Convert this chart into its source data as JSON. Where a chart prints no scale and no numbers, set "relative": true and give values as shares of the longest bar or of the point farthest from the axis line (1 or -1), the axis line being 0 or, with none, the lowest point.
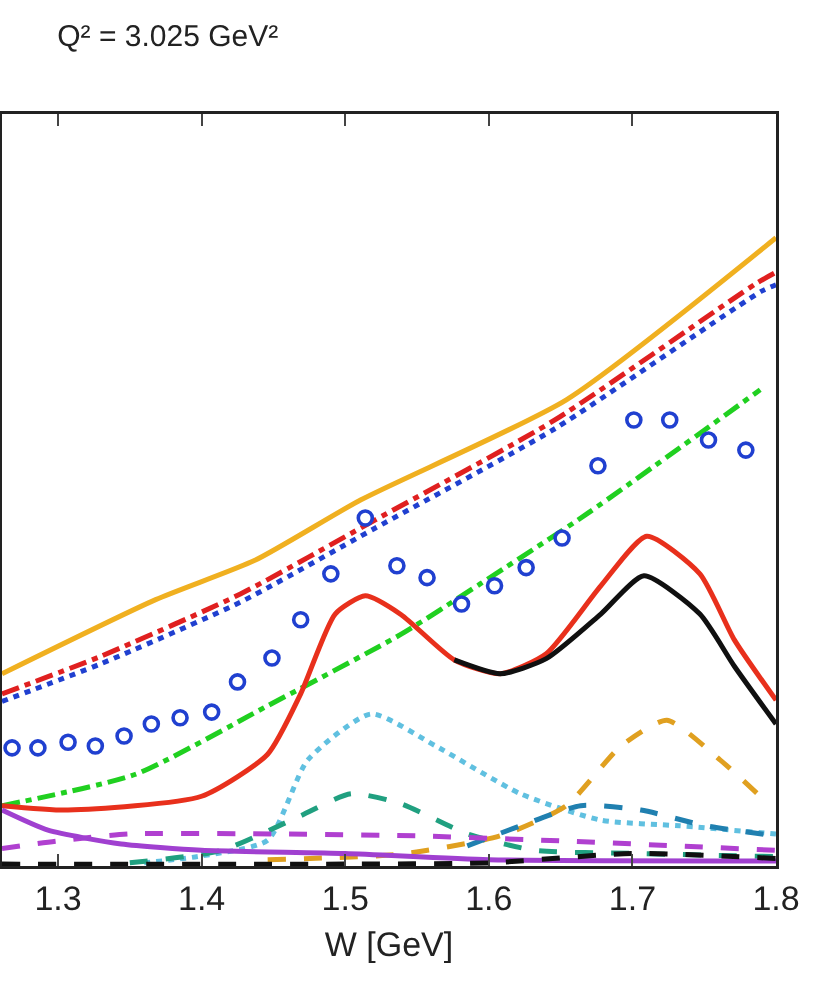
{
  "chart_data": {
    "type": "line",
    "title": "Q² = 3.025 GeV²",
    "xlabel": "W [GeV]",
    "relative": true,
    "xlim": [
      1.261,
      1.8
    ],
    "xticks": [
      1.3,
      1.4,
      1.5,
      1.6,
      1.7,
      1.8
    ],
    "grid": false,
    "series": [
      {
        "color": "#f0b020",
        "line_style": "solid",
        "x": [
          1.261,
          1.368,
          1.4375,
          1.511,
          1.654,
          1.8
        ],
        "values": [
          0.306,
          0.424,
          0.487,
          0.583,
          0.742,
          1.0
        ]
      },
      {
        "color": "#e02020",
        "line_style": "dashdot",
        "x": [
          1.261,
          1.33,
          1.427,
          1.521,
          1.646,
          1.786,
          1.8
        ],
        "values": [
          0.274,
          0.334,
          0.433,
          0.551,
          0.71,
          0.927,
          0.945
        ]
      },
      {
        "color": "#2040d0",
        "line_style": "dotted",
        "x": [
          1.261,
          1.33,
          1.427,
          1.521,
          1.646,
          1.79,
          1.8
        ],
        "values": [
          0.262,
          0.322,
          0.42,
          0.538,
          0.696,
          0.915,
          0.925
        ]
      },
      {
        "color": "#20d020",
        "line_style": "dashdot",
        "x": [
          1.261,
          1.354,
          1.446,
          1.539,
          1.594,
          1.668,
          1.789
        ],
        "values": [
          0.096,
          0.146,
          0.255,
          0.369,
          0.449,
          0.56,
          0.758
        ]
      },
      {
        "type": "scatter",
        "color": "#2040d0",
        "marker": "circle",
        "x": [
          1.268,
          1.286,
          1.307,
          1.326,
          1.346,
          1.365,
          1.385,
          1.407,
          1.425,
          1.449,
          1.469,
          1.49,
          1.514,
          1.536,
          1.557,
          1.581,
          1.604,
          1.626,
          1.651,
          1.676,
          1.701,
          1.726,
          1.753,
          1.779
        ],
        "values": [
          0.188,
          0.188,
          0.197,
          0.191,
          0.207,
          0.226,
          0.236,
          0.245,
          0.293,
          0.331,
          0.392,
          0.465,
          0.554,
          0.478,
          0.459,
          0.417,
          0.446,
          0.475,
          0.522,
          0.637,
          0.71,
          0.71,
          0.678,
          0.662
        ]
      },
      {
        "color": "#e8301c",
        "line_style": "solid",
        "x": [
          1.261,
          1.307,
          1.4,
          1.446,
          1.469,
          1.493,
          1.514,
          1.539,
          1.576,
          1.608,
          1.64,
          1.678,
          1.71,
          1.747,
          1.771,
          1.8
        ],
        "values": [
          0.096,
          0.089,
          0.111,
          0.178,
          0.274,
          0.401,
          0.43,
          0.4,
          0.328,
          0.306,
          0.338,
          0.446,
          0.525,
          0.465,
          0.36,
          0.264
        ]
      },
      {
        "color": "#101010",
        "line_style": "solid",
        "x": [
          1.576,
          1.608,
          1.64,
          1.678,
          1.708,
          1.747,
          1.771,
          1.8
        ],
        "values": [
          0.328,
          0.306,
          0.33,
          0.401,
          0.462,
          0.401,
          0.318,
          0.226
        ]
      },
      {
        "color": "#60c0e0",
        "line_style": "dotted",
        "x": [
          1.36,
          1.4,
          1.446,
          1.474,
          1.518,
          1.563,
          1.622,
          1.678,
          1.733,
          1.8
        ],
        "values": [
          0.005,
          0.016,
          0.041,
          0.169,
          0.242,
          0.191,
          0.115,
          0.073,
          0.064,
          0.051
        ]
      },
      {
        "color": "#20a080",
        "line_style": "dashed",
        "x": [
          1.35,
          1.414,
          1.469,
          1.504,
          1.539,
          1.585,
          1.632,
          1.7,
          1.8
        ],
        "values": [
          0.005,
          0.025,
          0.08,
          0.115,
          0.099,
          0.051,
          0.025,
          0.02,
          0.015
        ]
      },
      {
        "color": "#e0a020",
        "line_style": "dashed",
        "x": [
          1.446,
          1.539,
          1.608,
          1.654,
          1.692,
          1.724,
          1.761,
          1.789
        ],
        "values": [
          0.01,
          0.019,
          0.048,
          0.096,
          0.191,
          0.232,
          0.169,
          0.111
        ]
      },
      {
        "color": "#2080b0",
        "line_style": "dashed",
        "x": [
          1.585,
          1.622,
          1.664,
          1.706,
          1.751,
          1.8
        ],
        "values": [
          0.032,
          0.064,
          0.096,
          0.089,
          0.064,
          0.048
        ]
      },
      {
        "color": "#b040d0",
        "line_style": "dashed",
        "x": [
          1.261,
          1.3,
          1.35,
          1.45,
          1.55,
          1.65,
          1.8
        ],
        "values": [
          0.028,
          0.04,
          0.051,
          0.051,
          0.048,
          0.04,
          0.025
        ]
      },
      {
        "color": "#a040d0",
        "line_style": "solid",
        "x": [
          1.261,
          1.293,
          1.344,
          1.4,
          1.5,
          1.6,
          1.8
        ],
        "values": [
          0.089,
          0.057,
          0.035,
          0.025,
          0.02,
          0.01,
          0.008
        ]
      },
      {
        "color": "#101010",
        "line_style": "dashed",
        "x": [
          1.261,
          1.5,
          1.6,
          1.7,
          1.8
        ],
        "values": [
          0.003,
          0.003,
          0.005,
          0.02,
          0.012
        ]
      }
    ]
  }
}
